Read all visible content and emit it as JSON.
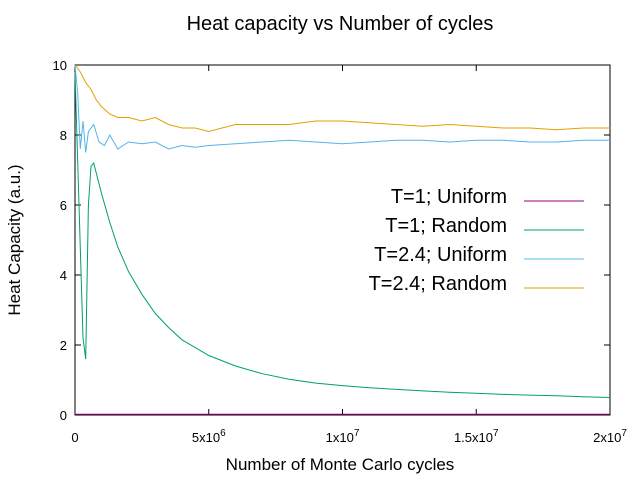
{
  "chart_data": {
    "type": "line",
    "title": "Heat capacity vs Number of cycles",
    "xlabel": "Number of Monte Carlo cycles",
    "ylabel": "Heat Capacity (a.u.)",
    "xlim": [
      0,
      20000000
    ],
    "ylim": [
      0,
      10
    ],
    "x_ticks": [
      {
        "value": 0,
        "label": "0",
        "exp": ""
      },
      {
        "value": 5000000,
        "label": "5x10",
        "exp": "6"
      },
      {
        "value": 10000000,
        "label": "1x10",
        "exp": "7"
      },
      {
        "value": 15000000,
        "label": "1.5x10",
        "exp": "7"
      },
      {
        "value": 20000000,
        "label": "2x10",
        "exp": "7"
      }
    ],
    "y_ticks": [
      0,
      2,
      4,
      6,
      8,
      10
    ],
    "grid": false,
    "legend_position": "right, mid-height inside plot",
    "series": [
      {
        "name": "T=1; Uniform",
        "color": "#94007f",
        "x": [
          0,
          20000000
        ],
        "y": [
          0.02,
          0.02
        ]
      },
      {
        "name": "T=1; Random",
        "color": "#009e73",
        "x": [
          0,
          150000,
          300000,
          400000,
          500000,
          600000,
          700000,
          800000,
          1000000,
          1300000,
          1600000,
          2000000,
          2500000,
          3000000,
          3500000,
          4000000,
          5000000,
          6000000,
          7000000,
          8000000,
          9000000,
          10000000,
          11000000,
          12000000,
          13000000,
          14000000,
          15000000,
          16000000,
          17000000,
          18000000,
          19000000,
          20000000
        ],
        "y": [
          9.8,
          6.0,
          2.2,
          1.6,
          6.0,
          7.1,
          7.2,
          6.9,
          6.3,
          5.5,
          4.8,
          4.1,
          3.45,
          2.9,
          2.5,
          2.15,
          1.7,
          1.4,
          1.18,
          1.02,
          0.91,
          0.84,
          0.78,
          0.73,
          0.69,
          0.65,
          0.62,
          0.59,
          0.57,
          0.55,
          0.52,
          0.5
        ]
      },
      {
        "name": "T=2.4; Uniform",
        "color": "#56b4e9",
        "x": [
          0,
          100000,
          200000,
          300000,
          400000,
          500000,
          700000,
          900000,
          1100000,
          1300000,
          1600000,
          2000000,
          2500000,
          3000000,
          3500000,
          4000000,
          4500000,
          5000000,
          6000000,
          7000000,
          8000000,
          9000000,
          10000000,
          11000000,
          12000000,
          13000000,
          14000000,
          15000000,
          16000000,
          17000000,
          18000000,
          19000000,
          20000000
        ],
        "y": [
          10.0,
          9.2,
          7.6,
          8.4,
          7.5,
          8.1,
          8.3,
          7.8,
          7.7,
          8.0,
          7.6,
          7.8,
          7.75,
          7.8,
          7.6,
          7.7,
          7.65,
          7.7,
          7.75,
          7.8,
          7.85,
          7.8,
          7.75,
          7.8,
          7.85,
          7.85,
          7.8,
          7.85,
          7.85,
          7.8,
          7.8,
          7.85,
          7.85
        ]
      },
      {
        "name": "T=2.4; Random",
        "color": "#e69f00",
        "x": [
          0,
          200000,
          400000,
          600000,
          800000,
          1000000,
          1300000,
          1600000,
          2000000,
          2500000,
          3000000,
          3500000,
          4000000,
          4500000,
          5000000,
          6000000,
          7000000,
          8000000,
          9000000,
          10000000,
          11000000,
          12000000,
          13000000,
          14000000,
          15000000,
          16000000,
          17000000,
          18000000,
          19000000,
          20000000
        ],
        "y": [
          10.0,
          9.8,
          9.5,
          9.3,
          9.0,
          8.8,
          8.6,
          8.5,
          8.5,
          8.4,
          8.5,
          8.3,
          8.2,
          8.2,
          8.1,
          8.3,
          8.3,
          8.3,
          8.4,
          8.4,
          8.35,
          8.3,
          8.25,
          8.3,
          8.25,
          8.2,
          8.2,
          8.15,
          8.2,
          8.2
        ]
      }
    ]
  }
}
